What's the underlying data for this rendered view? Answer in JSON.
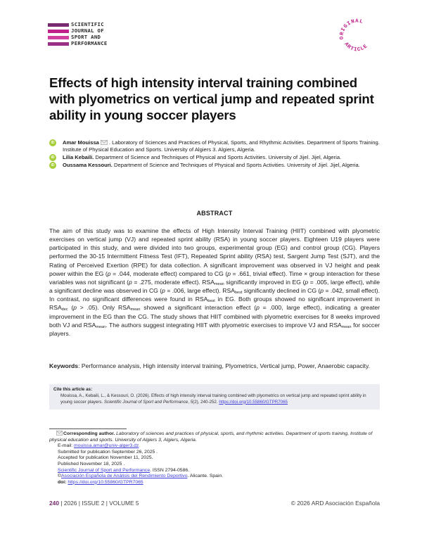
{
  "journal": {
    "logo_lines": [
      "SCIENTIFIC",
      "JOURNAL OF",
      "SPORT AND",
      "PERFORMANCE"
    ],
    "bar_colors": [
      "#7a2a6e",
      "#c0208a",
      "#d13fa0",
      "#9a2f86"
    ],
    "badge_top": "ORIGINAL",
    "badge_bottom": "ARTICLE",
    "badge_color": "#c0208a"
  },
  "title": "Effects of high intensity interval training combined with plyometrics on vertical jump and repeated sprint ability in young soccer players",
  "authors": [
    {
      "name": "Amar Mouissa",
      "has_mail": true,
      "affiliation": ". Laboratory of Sciences and Practices of Physical, Sports, and Rhythmic Activities. Department of Sports Training. Institute of Physical Education and Sports. University of Algiers 3. Algiers, Algeria."
    },
    {
      "name": "Lilia Kebaili.",
      "has_mail": false,
      "affiliation": " Department of Science and Techniques of Physical and Sports Activities. University of Jijel. Jijel, Algeria."
    },
    {
      "name": "Oussama Kessouri.",
      "has_mail": false,
      "affiliation": " Department of Science and Techniques of Physical and Sports Activities. University of Jijel. Jijel, Algeria."
    }
  ],
  "orcid_label": "iD",
  "abstract_heading": "ABSTRACT",
  "abstract": {
    "p1": "The aim of this study was to examine the effects of High Intensity Interval Training (HIIT) combined with plyometric exercises on vertical jump (VJ) and repeated sprint ability (RSA) in young soccer players. Eighteen U19 players were participated in this study, and were divided into two groups, experimental group (EG) and control group (CG). Players performed the 30-15 Intermittent Fitness Test (IFT), Repeated Sprint ability (RSA) test, Sargent Jump Test (SJT), and the Rating of Perceived Exertion (RPE) for data collection. A significant improvement was observed in VJ height and peak power within the EG (",
    "p": "p",
    "v1": " = .044, moderate effect) compared to CG (",
    "v2": " = .661, trivial effect). Time × group interaction for these variables was not significant (",
    "v3": " = .275, moderate effect). RSA",
    "mean": "mean",
    "best": "best",
    "dec": "dec",
    "v4": " significantly improved in EG (",
    "v5": " = .005, large effect), while a significant decline was observed in CG (",
    "v6": " = .006, large effect). RSA",
    "v7": " significantly declined in CG (",
    "v8": " = .042, small effect). In contrast, no significant differences were found in RSA",
    "v9": " in EG. Both groups showed no significant improvement in RSA",
    "v10": " (",
    "v11": " > .05). Only RSA",
    "v12": " showed a significant interaction effect (",
    "v13": " = .000, large effect), indicating a greater improvement in the EG than the CG. The study shows that HIIT combined with plyometric exercises for 8 weeks improved both VJ and RSA",
    "v14": ". The authors suggest integrating HIIT with plyometric exercises to improve VJ and RSA",
    "v15": " for soccer players."
  },
  "keywords": {
    "label": "Keywords",
    "text": ": Performance analysis, High intensity interval training, Plyometrics, Vertical jump, Power, Anaerobic capacity."
  },
  "cite": {
    "heading": "Cite this article as:",
    "text": "Mouissa, A., Kebaili, L., & Kessouri, O. (2026). Effects of high intensity interval training combined with plyometrics on vertical jump and repeated sprint ability in young soccer players. ",
    "journal": "Scientific Journal of Sport and Performance",
    "mid": ", ",
    "vol": "5",
    "pages": "(2), 240-252. ",
    "doi": "https://doi.org/10.55860/GTPR7065"
  },
  "footnote": {
    "label": "Corresponding author.",
    "address": " Laboratory of sciences and practices of physical, sports, and rhythmic activities. Department of sports training, Institute of physical education and sports. University of Algiers 3, Algiers, Algeria.",
    "email_label": "E-mail: ",
    "email": "mouissa.amar@univ-alger3.dz",
    "submitted": "Submitted for publication September 26, 2025 .",
    "accepted": "Accepted for publication November 11, 2025.",
    "published": "Published November 18, 2025 .",
    "journal_link": "Scientific Journal of Sport and Performance",
    "issn": ". ISSN 2794-0586.",
    "copyright_sym": "©",
    "assoc": "Asociación Española de Análisis del Rendimiento Deportivo",
    "location": ". Alicante. Spain.",
    "doi_label": "doi: ",
    "doi": "https://doi.org/10.55860/GTPR7065"
  },
  "footer": {
    "page": "240",
    "issue": "| 2026 | ISSUE 2 | VOLUME 5",
    "copyright": "© 2026 ARD Asociación Española"
  }
}
